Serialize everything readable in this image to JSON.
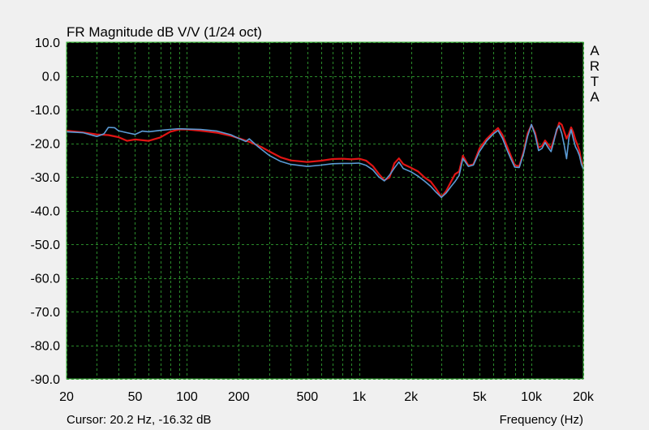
{
  "chart_data": {
    "type": "line",
    "title": "FR Magnitude dB V/V (1/24 oct)",
    "xlabel": "Frequency (Hz)",
    "ylabel": "",
    "x_scale": "log",
    "xlim": [
      20,
      20000
    ],
    "ylim": [
      -90,
      10
    ],
    "y_ticks": [
      10,
      0,
      -10,
      -20,
      -30,
      -40,
      -50,
      -60,
      -70,
      -80,
      -90
    ],
    "y_tick_labels": [
      "10.0",
      "0.0",
      "-10.0",
      "-20.0",
      "-30.0",
      "-40.0",
      "-50.0",
      "-60.0",
      "-70.0",
      "-80.0",
      "-90.0"
    ],
    "x_ticks": [
      20,
      50,
      100,
      200,
      500,
      1000,
      2000,
      5000,
      10000,
      20000
    ],
    "x_tick_labels": [
      "20",
      "50",
      "100",
      "200",
      "500",
      "1k",
      "2k",
      "5k",
      "10k",
      "20k"
    ],
    "grid": true,
    "background": "#000000",
    "grid_color": "#2a8a2a",
    "series": [
      {
        "color": "#e01414",
        "x": [
          20,
          25,
          30,
          35,
          40,
          45,
          50,
          60,
          70,
          80,
          90,
          100,
          120,
          150,
          180,
          200,
          230,
          270,
          300,
          350,
          400,
          500,
          600,
          700,
          800,
          900,
          1000,
          1100,
          1200,
          1300,
          1400,
          1500,
          1600,
          1700,
          1800,
          2000,
          2200,
          2400,
          2600,
          2800,
          3000,
          3200,
          3400,
          3600,
          3800,
          4000,
          4300,
          4600,
          5000,
          5500,
          6000,
          6400,
          6800,
          7200,
          7600,
          8000,
          8500,
          9000,
          9500,
          10000,
          10500,
          11000,
          11500,
          12000,
          12500,
          13000,
          13500,
          14000,
          14500,
          15000,
          15500,
          16000,
          16500,
          17000,
          17500,
          18000,
          18500,
          19000,
          19500,
          20000
        ],
        "y": [
          -16.3,
          -16.8,
          -17.4,
          -17.6,
          -18.2,
          -19.3,
          -18.9,
          -19.3,
          -18.3,
          -16.6,
          -15.9,
          -15.9,
          -16.3,
          -16.9,
          -17.8,
          -18.5,
          -19.6,
          -21.1,
          -22.4,
          -24.2,
          -25.1,
          -25.6,
          -25.2,
          -24.7,
          -24.6,
          -24.8,
          -24.6,
          -25.2,
          -26.8,
          -29.1,
          -31.0,
          -30.2,
          -26.0,
          -24.5,
          -26.2,
          -27.3,
          -28.4,
          -30.2,
          -31.4,
          -33.6,
          -36.0,
          -34.2,
          -31.6,
          -29.2,
          -28.4,
          -23.7,
          -26.6,
          -26.3,
          -21.5,
          -18.7,
          -16.8,
          -15.5,
          -17.6,
          -20.8,
          -23.8,
          -26.6,
          -26.8,
          -22.6,
          -17.1,
          -14.6,
          -16.9,
          -21.3,
          -20.8,
          -19.2,
          -20.4,
          -21.5,
          -18.9,
          -16.4,
          -13.9,
          -14.5,
          -16.6,
          -18.6,
          -17.2,
          -15.3,
          -16.8,
          -19.0,
          -20.5,
          -22.3,
          -25.5,
          -27.1
        ]
      },
      {
        "color": "#5b9bd5",
        "x": [
          20,
          25,
          30,
          33,
          35,
          38,
          40,
          45,
          50,
          55,
          60,
          70,
          80,
          90,
          100,
          120,
          150,
          180,
          200,
          220,
          230,
          260,
          300,
          350,
          400,
          500,
          600,
          700,
          800,
          900,
          1000,
          1100,
          1200,
          1300,
          1400,
          1500,
          1600,
          1700,
          1800,
          2000,
          2200,
          2400,
          2600,
          2800,
          3000,
          3200,
          3400,
          3600,
          3800,
          4000,
          4300,
          4600,
          5000,
          5500,
          6000,
          6400,
          6800,
          7200,
          7600,
          8000,
          8500,
          9000,
          9500,
          10000,
          10500,
          11000,
          11500,
          12000,
          12500,
          13000,
          13500,
          14000,
          14500,
          15000,
          15500,
          16000,
          16500,
          17000,
          17500,
          18000,
          18500,
          19000,
          19500,
          20000
        ],
        "y": [
          -16.6,
          -16.9,
          -18.0,
          -17.2,
          -15.3,
          -15.4,
          -16.3,
          -16.9,
          -17.4,
          -16.4,
          -16.6,
          -16.2,
          -15.9,
          -15.7,
          -15.8,
          -15.9,
          -16.4,
          -17.5,
          -18.6,
          -19.5,
          -18.7,
          -21.1,
          -23.6,
          -25.4,
          -26.3,
          -26.9,
          -26.5,
          -26.1,
          -26.0,
          -26.0,
          -25.9,
          -26.6,
          -27.9,
          -30.0,
          -31.2,
          -29.5,
          -27.4,
          -25.6,
          -27.5,
          -28.5,
          -29.8,
          -31.3,
          -32.8,
          -34.6,
          -36.1,
          -34.8,
          -33.0,
          -31.4,
          -29.6,
          -24.5,
          -26.9,
          -26.5,
          -22.4,
          -19.3,
          -17.3,
          -16.2,
          -18.6,
          -21.9,
          -24.7,
          -27.1,
          -27.2,
          -23.1,
          -17.9,
          -14.4,
          -17.6,
          -22.2,
          -21.6,
          -19.8,
          -21.3,
          -22.5,
          -19.4,
          -15.9,
          -14.8,
          -17.1,
          -20.6,
          -24.6,
          -18.4,
          -16.0,
          -18.7,
          -21.0,
          -22.2,
          -23.7,
          -26.3,
          -27.7
        ]
      }
    ],
    "watermark_text": [
      "A",
      "R",
      "T",
      "A"
    ]
  },
  "cursor_readout": "Cursor: 20.2 Hz, -16.32 dB"
}
